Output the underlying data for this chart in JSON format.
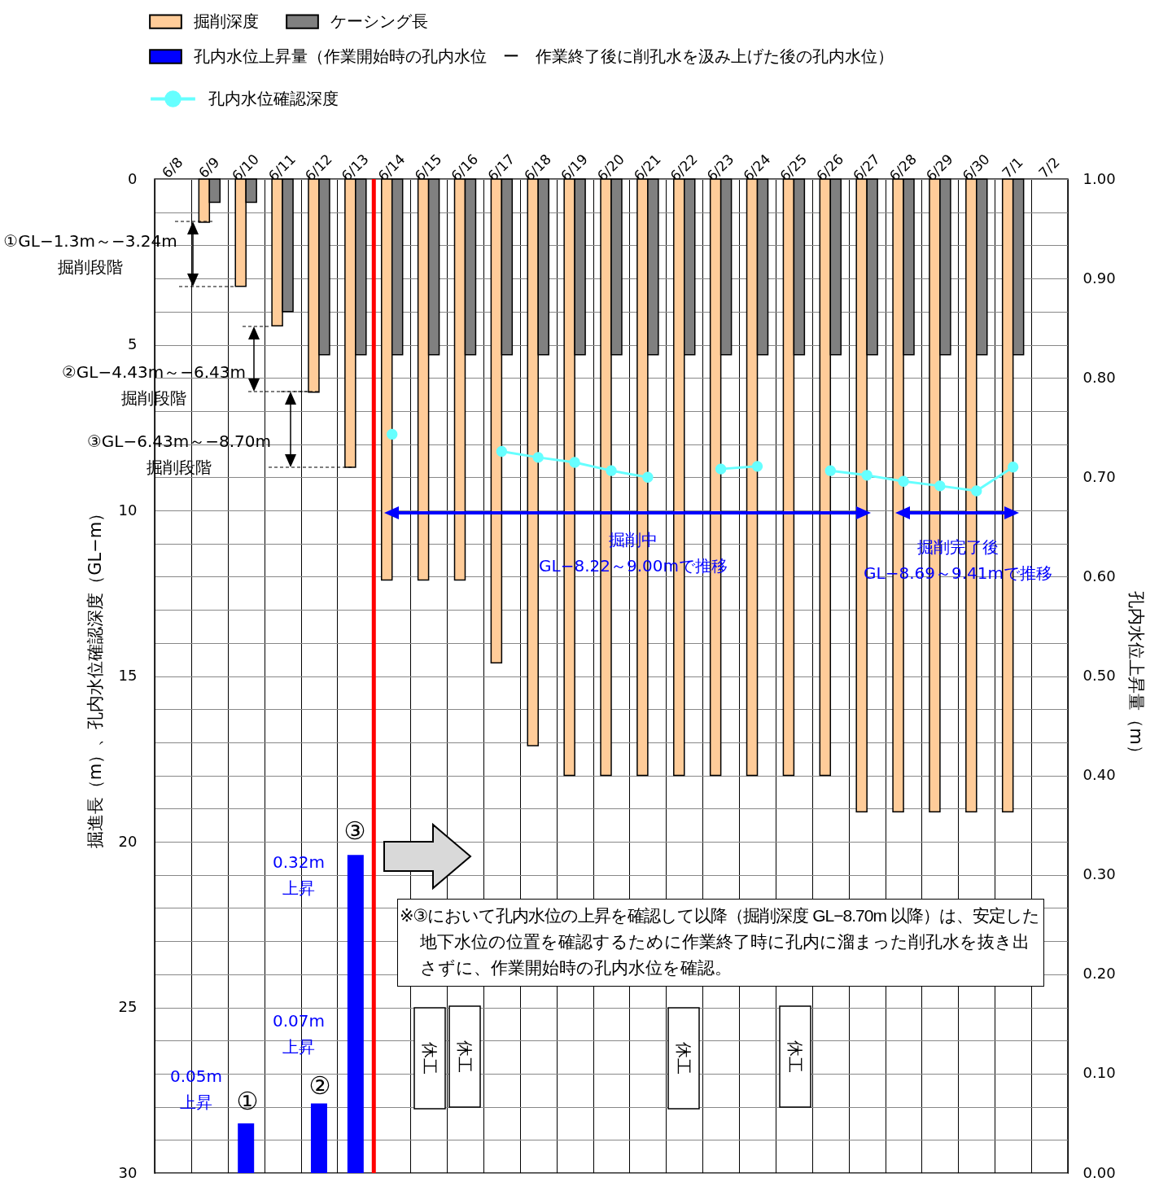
{
  "chart_data": {
    "type": "bar",
    "ylabel": "掘進長（m）、孔内水位確認深度（GL−m）",
    "y2label": "孔内水位上昇量（m）",
    "categories": [
      "6/8",
      "6/9",
      "6/10",
      "6/11",
      "6/12",
      "6/13",
      "6/14",
      "6/15",
      "6/16",
      "6/17",
      "6/18",
      "6/19",
      "6/20",
      "6/21",
      "6/22",
      "6/23",
      "6/24",
      "6/25",
      "6/26",
      "6/27",
      "6/28",
      "6/29",
      "6/30",
      "7/1",
      "7/2"
    ],
    "series": [
      {
        "name": "掘削深度",
        "color": "#ffcc99",
        "values": [
          null,
          1.3,
          3.24,
          4.43,
          6.43,
          8.7,
          12.1,
          12.1,
          12.1,
          14.6,
          17.1,
          18,
          18,
          18,
          18,
          18,
          18,
          18,
          18,
          19.1,
          19.1,
          19.1,
          19.1,
          19.1,
          null
        ]
      },
      {
        "name": "ケーシング長",
        "color": "#808080",
        "values": [
          null,
          0.7,
          0.7,
          4.0,
          5.3,
          5.3,
          5.3,
          5.3,
          5.3,
          5.3,
          5.3,
          5.3,
          5.3,
          5.3,
          5.3,
          5.3,
          5.3,
          5.3,
          5.3,
          5.3,
          5.3,
          5.3,
          5.3,
          5.3,
          null
        ]
      },
      {
        "name": "孔内水位上昇量（作業開始時の孔内水位　ー　作業終了後に削孔水を汲み上げた後の孔内水位）",
        "axis": "y2",
        "color": "#0000ff",
        "values": [
          null,
          null,
          0.05,
          null,
          0.07,
          0.32,
          null,
          null,
          null,
          null,
          null,
          null,
          null,
          null,
          null,
          null,
          null,
          null,
          null,
          null,
          null,
          null,
          null,
          null,
          null
        ]
      },
      {
        "name": "孔内水位確認深度",
        "type": "line",
        "color": "#66ffff",
        "marker": "circle",
        "values": [
          null,
          null,
          null,
          null,
          null,
          null,
          7.7,
          null,
          null,
          8.22,
          8.4,
          8.55,
          8.8,
          9.0,
          null,
          8.75,
          8.67,
          null,
          8.8,
          8.94,
          9.12,
          9.26,
          9.41,
          8.69,
          null
        ]
      }
    ],
    "ylim": [
      30,
      0
    ],
    "yticks": [
      0,
      {
        "value": 1,
        "label": null
      },
      {
        "value": 2,
        "label": null
      },
      {
        "value": 3,
        "label": null
      },
      {
        "value": 4,
        "label": null
      },
      5,
      {
        "value": 6,
        "label": null
      },
      {
        "value": 7,
        "label": null
      },
      {
        "value": 8,
        "label": null
      },
      {
        "value": 9,
        "label": null
      },
      10,
      {
        "value": 11,
        "label": null
      },
      {
        "value": 12,
        "label": null
      },
      {
        "value": 13,
        "label": null
      },
      {
        "value": 14,
        "label": null
      },
      15,
      {
        "value": 16,
        "label": null
      },
      {
        "value": 17,
        "label": null
      },
      {
        "value": 18,
        "label": null
      },
      {
        "value": 19,
        "label": null
      },
      20,
      {
        "value": 21,
        "label": null
      },
      {
        "value": 22,
        "label": null
      },
      {
        "value": 23,
        "label": null
      },
      {
        "value": 24,
        "label": null
      },
      25,
      {
        "value": 26,
        "label": null
      },
      {
        "value": 27,
        "label": null
      },
      {
        "value": 28,
        "label": null
      },
      {
        "value": 29,
        "label": null
      },
      30
    ],
    "y2lim": [
      0,
      1
    ],
    "y2ticks": [
      {
        "value": 0,
        "label": "0.00"
      },
      {
        "value": 0.1,
        "label": "0.10"
      },
      {
        "value": 0.2,
        "label": "0.20"
      },
      {
        "value": 0.3,
        "label": "0.30"
      },
      {
        "value": 0.4,
        "label": "0.40"
      },
      {
        "value": 0.5,
        "label": "0.50"
      },
      {
        "value": 0.6,
        "label": "0.60"
      },
      {
        "value": 0.7,
        "label": "0.70"
      },
      {
        "value": 0.8,
        "label": "0.80"
      },
      {
        "value": 0.9,
        "label": "0.90"
      },
      {
        "value": 1,
        "label": "1.00"
      }
    ],
    "grid": true,
    "legend": "top",
    "ref_lines": [
      {
        "axis": "x",
        "value": "6/13",
        "color": "#ff0000"
      }
    ],
    "annotations": [
      "①GL−1.3m～−3.24m\n掘削段階",
      "②GL−4.43m～−6.43m\n掘削段階",
      "③GL−6.43m～−8.70m\n掘削段階",
      "掘削中\nGL−8.22～9.00mで推移",
      "掘削完了後\nGL−8.69～9.41mで推移",
      "0.32m\n上昇",
      "0.07m\n上昇",
      "0.05m\n上昇",
      "①",
      "②",
      "③",
      "休工",
      "休工",
      "休工",
      "休工",
      "※③において孔内水位の上昇を確認して以降（掘削深度 GL−8.70m 以降）は、安定した地下水位の位置を確認するために作業終了時に孔内に溜まった削孔水を抜き出さずに、作業開始時の孔内水位を確認。"
    ]
  }
}
